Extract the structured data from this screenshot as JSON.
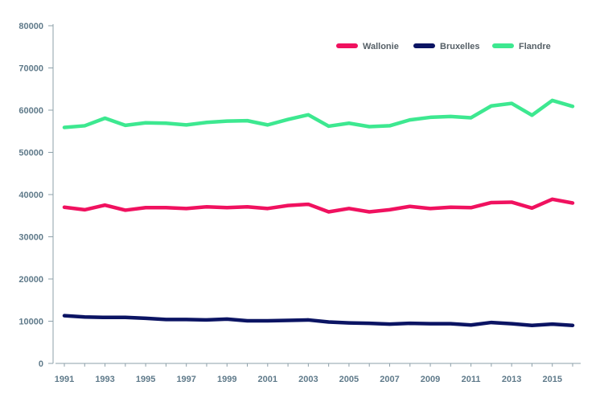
{
  "chart_data": {
    "type": "line",
    "title": "",
    "xlabel": "",
    "ylabel": "",
    "x": [
      1991,
      1992,
      1993,
      1994,
      1995,
      1996,
      1997,
      1998,
      1999,
      2000,
      2001,
      2002,
      2003,
      2004,
      2005,
      2006,
      2007,
      2008,
      2009,
      2010,
      2011,
      2012,
      2013,
      2014,
      2015,
      2016
    ],
    "x_tick_labels": [
      "1991",
      "1993",
      "1995",
      "1997",
      "1999",
      "2001",
      "2003",
      "2005",
      "2007",
      "2009",
      "2011",
      "2013",
      "2015"
    ],
    "y_tick_labels": [
      "0",
      "10000",
      "20000",
      "30000",
      "40000",
      "50000",
      "60000",
      "70000",
      "80000"
    ],
    "ylim": [
      0,
      80000
    ],
    "grid": false,
    "legend_position": "top-right",
    "series": [
      {
        "name": "Wallonie",
        "color": "#f0115f",
        "values": [
          37000,
          36400,
          37500,
          36300,
          36900,
          36900,
          36700,
          37100,
          36900,
          37100,
          36700,
          37400,
          37700,
          35900,
          36700,
          35900,
          36400,
          37200,
          36700,
          37000,
          36900,
          38100,
          38200,
          36800,
          38900,
          38000
        ]
      },
      {
        "name": "Bruxelles",
        "color": "#0b1463",
        "values": [
          11300,
          11000,
          10900,
          10900,
          10700,
          10400,
          10400,
          10300,
          10500,
          10100,
          10100,
          10200,
          10300,
          9800,
          9600,
          9500,
          9300,
          9500,
          9400,
          9400,
          9100,
          9700,
          9400,
          9000,
          9300,
          9000
        ]
      },
      {
        "name": "Flandre",
        "color": "#3de890",
        "values": [
          55900,
          56300,
          58100,
          56400,
          57000,
          56900,
          56500,
          57100,
          57400,
          57500,
          56500,
          57800,
          58900,
          56200,
          56900,
          56100,
          56300,
          57700,
          58300,
          58500,
          58200,
          61000,
          61600,
          58800,
          62300,
          60900
        ]
      }
    ]
  }
}
